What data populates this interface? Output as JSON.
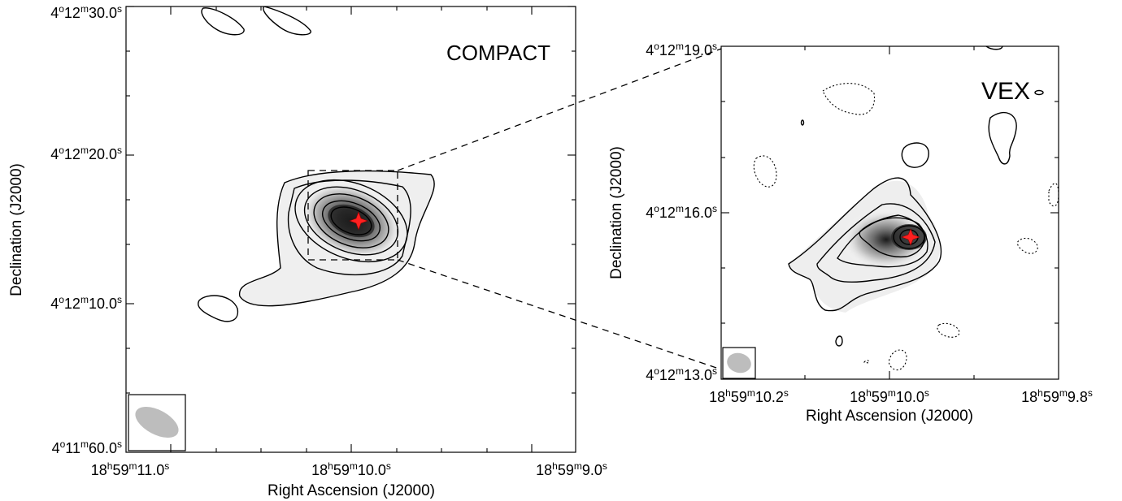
{
  "chart_data": [
    {
      "type": "heatmap",
      "panel": "COMPACT",
      "label": "COMPACT",
      "xlabel": "Right Ascension (J2000)",
      "ylabel": "Declination (J2000)",
      "x_ticks": [
        {
          "h": "18",
          "m": "59",
          "s": "11.0"
        },
        {
          "h": "18",
          "m": "59",
          "s": "10.0"
        },
        {
          "h": "18",
          "m": "59",
          "s": "9.0"
        }
      ],
      "y_ticks": [
        {
          "d": "4",
          "m": "12",
          "s": "30.0"
        },
        {
          "d": "4",
          "m": "12",
          "s": "20.0"
        },
        {
          "d": "4",
          "m": "12",
          "s": "10.0"
        },
        {
          "d": "4",
          "m": "11",
          "s": "60.0"
        }
      ],
      "ra_range_s": [
        11.45,
        8.95
      ],
      "dec_range_s": [
        60.0,
        90.0
      ],
      "peak": {
        "ra_s": 9.98,
        "dec_s": 75.3
      },
      "beam_shown": true
    },
    {
      "type": "heatmap",
      "panel": "VEX",
      "label": "VEX",
      "xlabel": "Right Ascension (J2000)",
      "ylabel": "Declination (J2000)",
      "x_ticks": [
        {
          "h": "18",
          "m": "59",
          "s": "10.2"
        },
        {
          "h": "18",
          "m": "59",
          "s": "10.0"
        },
        {
          "h": "18",
          "m": "59",
          "s": "9.8"
        }
      ],
      "y_ticks": [
        {
          "d": "4",
          "m": "12",
          "s": "19.0"
        },
        {
          "d": "4",
          "m": "12",
          "s": "16.0"
        },
        {
          "d": "4",
          "m": "12",
          "s": "13.0"
        }
      ],
      "ra_range_s": [
        10.2,
        9.8
      ],
      "dec_range_s": [
        13.0,
        19.0
      ],
      "peak": {
        "ra_s": 9.98,
        "dec_s": 15.3
      },
      "beam_shown": true
    }
  ],
  "colors": {
    "marker": "#ff2020",
    "beam": "#bdbdbd",
    "contour": "#000000"
  }
}
